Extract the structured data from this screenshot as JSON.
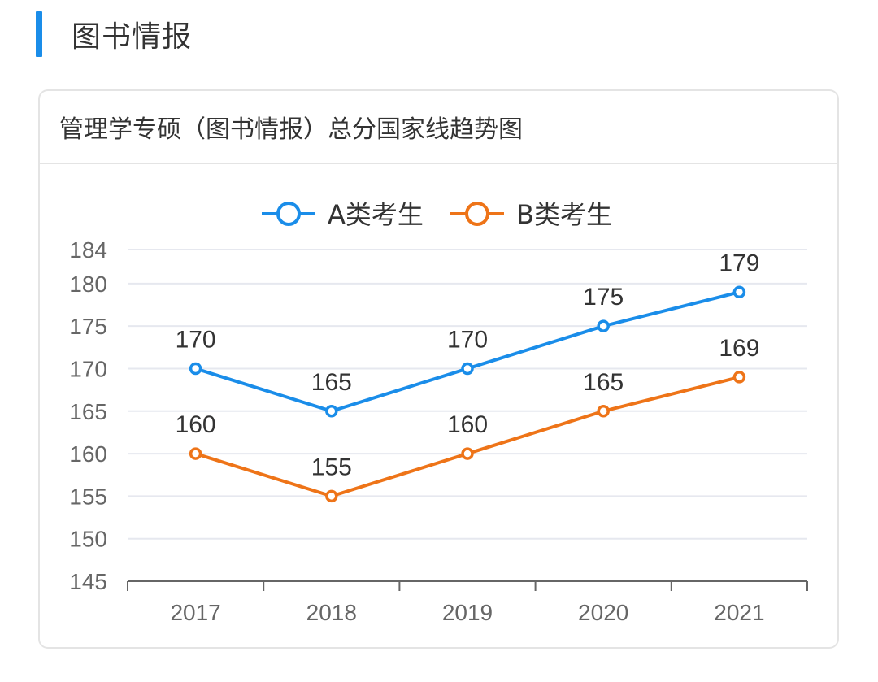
{
  "section": {
    "title": "图书情报",
    "accent_color": "#1a8de9"
  },
  "card": {
    "title": "管理学专硕（图书情报）总分国家线趋势图"
  },
  "chart_data": {
    "type": "line",
    "title": "管理学专硕（图书情报）总分国家线趋势图",
    "categories": [
      "2017",
      "2018",
      "2019",
      "2020",
      "2021"
    ],
    "series": [
      {
        "name": "A类考生",
        "values": [
          170,
          165,
          170,
          175,
          179
        ],
        "color": "#1a8de9"
      },
      {
        "name": "B类考生",
        "values": [
          160,
          155,
          160,
          165,
          169
        ],
        "color": "#ee7418"
      }
    ],
    "yticks": [
      145,
      150,
      155,
      160,
      165,
      170,
      175,
      180,
      184
    ],
    "ylim": [
      145,
      184
    ],
    "xlabel": "",
    "ylabel": "",
    "grid": true,
    "legend_position": "top-center",
    "data_labels": true
  }
}
